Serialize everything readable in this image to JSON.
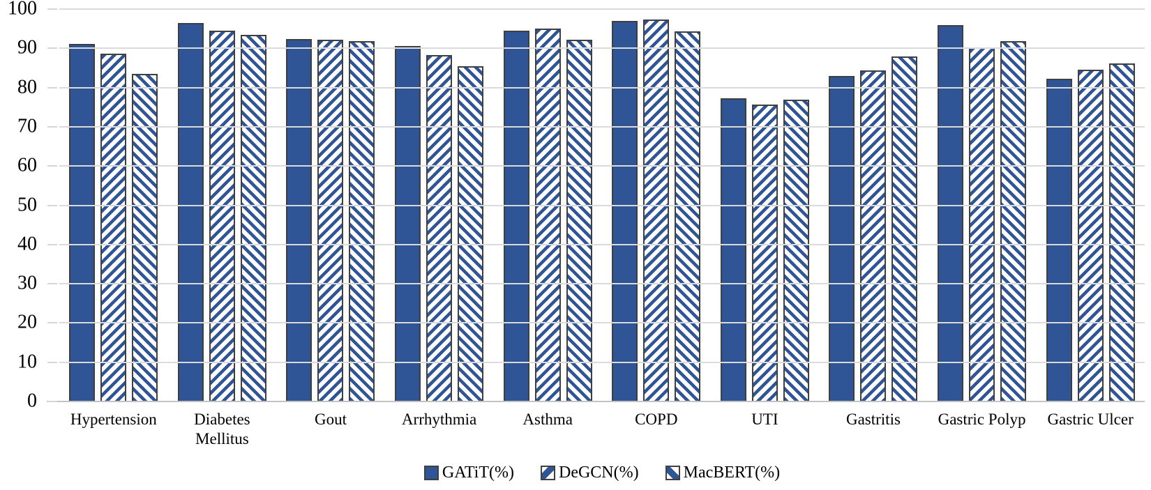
{
  "chart_data": {
    "type": "bar",
    "title": "",
    "xlabel": "",
    "ylabel": "",
    "categories": [
      "Hypertension",
      "Diabetes Mellitus",
      "Gout",
      "Arrhythmia",
      "Asthma",
      "COPD",
      "UTI",
      "Gastritis",
      "Gastric Polyp",
      "Gastric Ulcer"
    ],
    "series": [
      {
        "name": "GATiT(%)",
        "pattern": "solid",
        "values": [
          91.2,
          96.5,
          92.3,
          90.6,
          94.5,
          97.0,
          77.3,
          83.0,
          96.0,
          82.3
        ]
      },
      {
        "name": "DeGCN(%)",
        "pattern": "hatch-forward",
        "values": [
          88.6,
          94.5,
          92.2,
          88.2,
          95.0,
          97.4,
          75.7,
          84.4,
          90.2,
          84.5
        ]
      },
      {
        "name": "MacBERT(%)",
        "pattern": "hatch-back",
        "values": [
          83.5,
          93.5,
          91.8,
          85.4,
          92.2,
          94.3,
          76.9,
          88.0,
          91.9,
          86.2
        ]
      }
    ],
    "ylim": [
      0,
      100
    ],
    "yticks": [
      0,
      10,
      20,
      30,
      40,
      50,
      60,
      70,
      80,
      90,
      100
    ],
    "grid": true,
    "legend_position": "bottom",
    "colors": {
      "bar_blue": "#2f5597",
      "hatch_background": "#ffffff",
      "bar_border": "#3f3f3f",
      "gridline": "#dbdbdb",
      "axis_line": "#c3c3c3",
      "text": "#000000"
    }
  }
}
